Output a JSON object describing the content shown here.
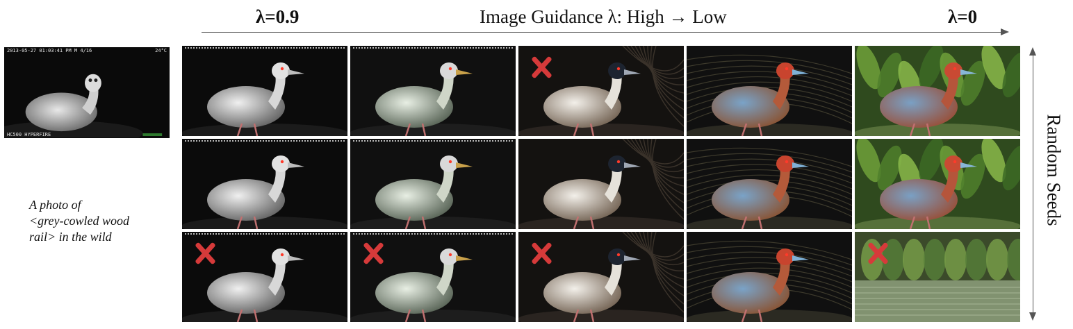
{
  "header": {
    "lambda_high": "λ=0.9",
    "title": "Image Guidance λ: High → Low",
    "lambda_low": "λ=0"
  },
  "side_label": "Random Seeds",
  "caption": {
    "line1": "A photo of",
    "line2": "<grey-cowled wood",
    "line3": "rail> in the wild"
  },
  "source_image": {
    "timestamp": "2013-05-27 01:03:41 PM  M 4/16",
    "temperature": "24°C",
    "camera": "HC500 HYPERFIRE"
  },
  "grid": {
    "columns_lambda": [
      "0.9",
      "high-mid",
      "mid",
      "low-mid",
      "0"
    ],
    "rows": [
      {
        "cells": [
          {
            "style": "ir-gray",
            "rejected": false
          },
          {
            "style": "ir-tinted",
            "rejected": false
          },
          {
            "style": "dark-painted",
            "rejected": true
          },
          {
            "style": "color-dark",
            "rejected": false
          },
          {
            "style": "color-green",
            "rejected": false
          }
        ]
      },
      {
        "cells": [
          {
            "style": "ir-gray",
            "rejected": false
          },
          {
            "style": "ir-tinted",
            "rejected": false
          },
          {
            "style": "dark-painted",
            "rejected": false
          },
          {
            "style": "color-dark",
            "rejected": false
          },
          {
            "style": "color-green",
            "rejected": false
          }
        ]
      },
      {
        "cells": [
          {
            "style": "ir-gray",
            "rejected": true
          },
          {
            "style": "ir-tinted",
            "rejected": true
          },
          {
            "style": "dark-painted",
            "rejected": true
          },
          {
            "style": "color-dark",
            "rejected": false
          },
          {
            "style": "color-water",
            "rejected": true
          }
        ]
      }
    ]
  },
  "colors": {
    "reject_mark": "#d63a3a",
    "arrow": "#555555"
  }
}
